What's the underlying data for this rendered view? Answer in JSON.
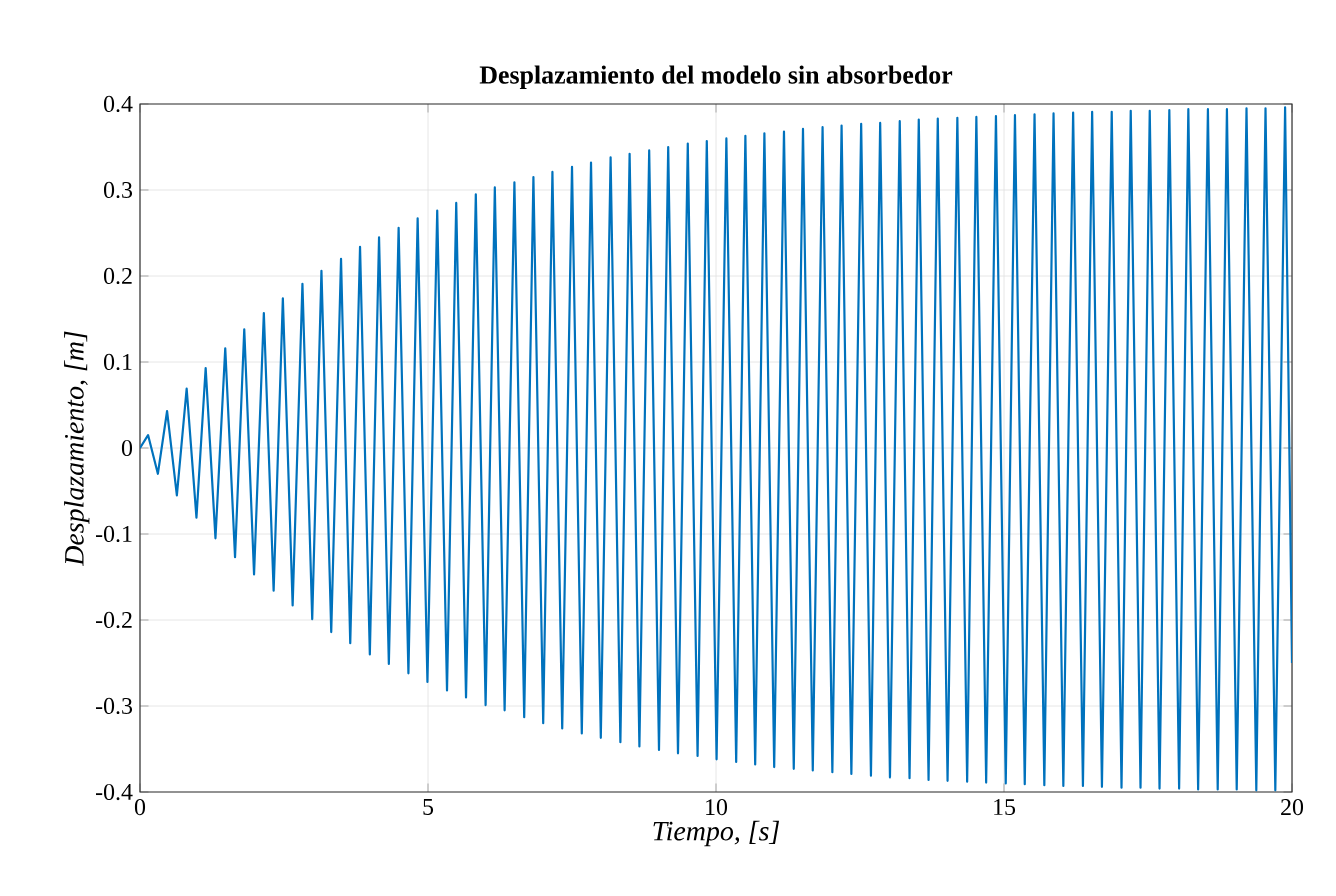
{
  "chart_data": {
    "type": "line",
    "title": "Desplazamiento del modelo sin absorbedor",
    "xlabel": "*Tiempo, [s]*",
    "ylabel": "*Desplazamiento, [m]*",
    "xlim": [
      0,
      20
    ],
    "ylim": [
      -0.4,
      0.4
    ],
    "xticks": [
      0,
      5,
      10,
      15,
      20
    ],
    "yticks": [
      -0.4,
      -0.3,
      -0.2,
      -0.1,
      0,
      0.1,
      0.2,
      0.3,
      0.4
    ],
    "grid": true,
    "series": [
      {
        "color": "#0072bd",
        "x": [
          0,
          0.14,
          0.31,
          0.47,
          0.64,
          0.81,
          0.98,
          1.14,
          1.31,
          1.48,
          1.65,
          1.81,
          1.98,
          2.15,
          2.32,
          2.48,
          2.65,
          2.82,
          2.99,
          3.15,
          3.32,
          3.49,
          3.65,
          3.82,
          3.99,
          4.15,
          4.32,
          4.49,
          4.66,
          4.82,
          4.99,
          5.16,
          5.33,
          5.49,
          5.66,
          5.83,
          6.0,
          6.16,
          6.33,
          6.5,
          6.67,
          6.83,
          7.0,
          7.16,
          7.33,
          7.5,
          7.67,
          7.83,
          8.0,
          8.17,
          8.34,
          8.5,
          8.67,
          8.84,
          9.01,
          9.17,
          9.34,
          9.51,
          9.68,
          9.84,
          10.01,
          10.18,
          10.35,
          10.51,
          10.68,
          10.84,
          11.01,
          11.18,
          11.35,
          11.51,
          11.68,
          11.85,
          12.02,
          12.18,
          12.35,
          12.52,
          12.69,
          12.85,
          13.02,
          13.19,
          13.36,
          13.52,
          13.69,
          13.85,
          14.02,
          14.19,
          14.36,
          14.52,
          14.69,
          14.86,
          15.03,
          15.19,
          15.36,
          15.53,
          15.7,
          15.86,
          16.03,
          16.2,
          16.37,
          16.53,
          16.7,
          16.87,
          17.04,
          17.2,
          17.37,
          17.53,
          17.7,
          17.87,
          18.04,
          18.2,
          18.37,
          18.54,
          18.71,
          18.87,
          19.04,
          19.21,
          19.38,
          19.54,
          19.71,
          19.88,
          20
        ],
        "values": [
          0,
          0.015,
          -0.03,
          0.043,
          -0.055,
          0.069,
          -0.081,
          0.093,
          -0.105,
          0.116,
          -0.127,
          0.138,
          -0.147,
          0.157,
          -0.166,
          0.174,
          -0.183,
          0.191,
          -0.199,
          0.206,
          -0.214,
          0.22,
          -0.227,
          0.234,
          -0.24,
          0.245,
          -0.251,
          0.256,
          -0.262,
          0.267,
          -0.272,
          0.276,
          -0.282,
          0.285,
          -0.29,
          0.295,
          -0.299,
          0.303,
          -0.305,
          0.309,
          -0.313,
          0.315,
          -0.32,
          0.321,
          -0.326,
          0.327,
          -0.332,
          0.332,
          -0.337,
          0.338,
          -0.342,
          0.342,
          -0.347,
          0.346,
          -0.351,
          0.35,
          -0.355,
          0.354,
          -0.358,
          0.357,
          -0.362,
          0.36,
          -0.365,
          0.363,
          -0.368,
          0.366,
          -0.371,
          0.368,
          -0.373,
          0.371,
          -0.375,
          0.373,
          -0.377,
          0.375,
          -0.379,
          0.377,
          -0.381,
          0.378,
          -0.383,
          0.38,
          -0.384,
          0.382,
          -0.386,
          0.383,
          -0.387,
          0.384,
          -0.388,
          0.385,
          -0.389,
          0.386,
          -0.39,
          0.387,
          -0.391,
          0.388,
          -0.392,
          0.389,
          -0.393,
          0.39,
          -0.393,
          0.391,
          -0.394,
          0.391,
          -0.395,
          0.392,
          -0.395,
          0.392,
          -0.396,
          0.393,
          -0.396,
          0.394,
          -0.397,
          0.394,
          -0.397,
          0.394,
          -0.397,
          0.395,
          -0.398,
          0.395,
          -0.398,
          0.396,
          -0.25
        ]
      }
    ]
  }
}
